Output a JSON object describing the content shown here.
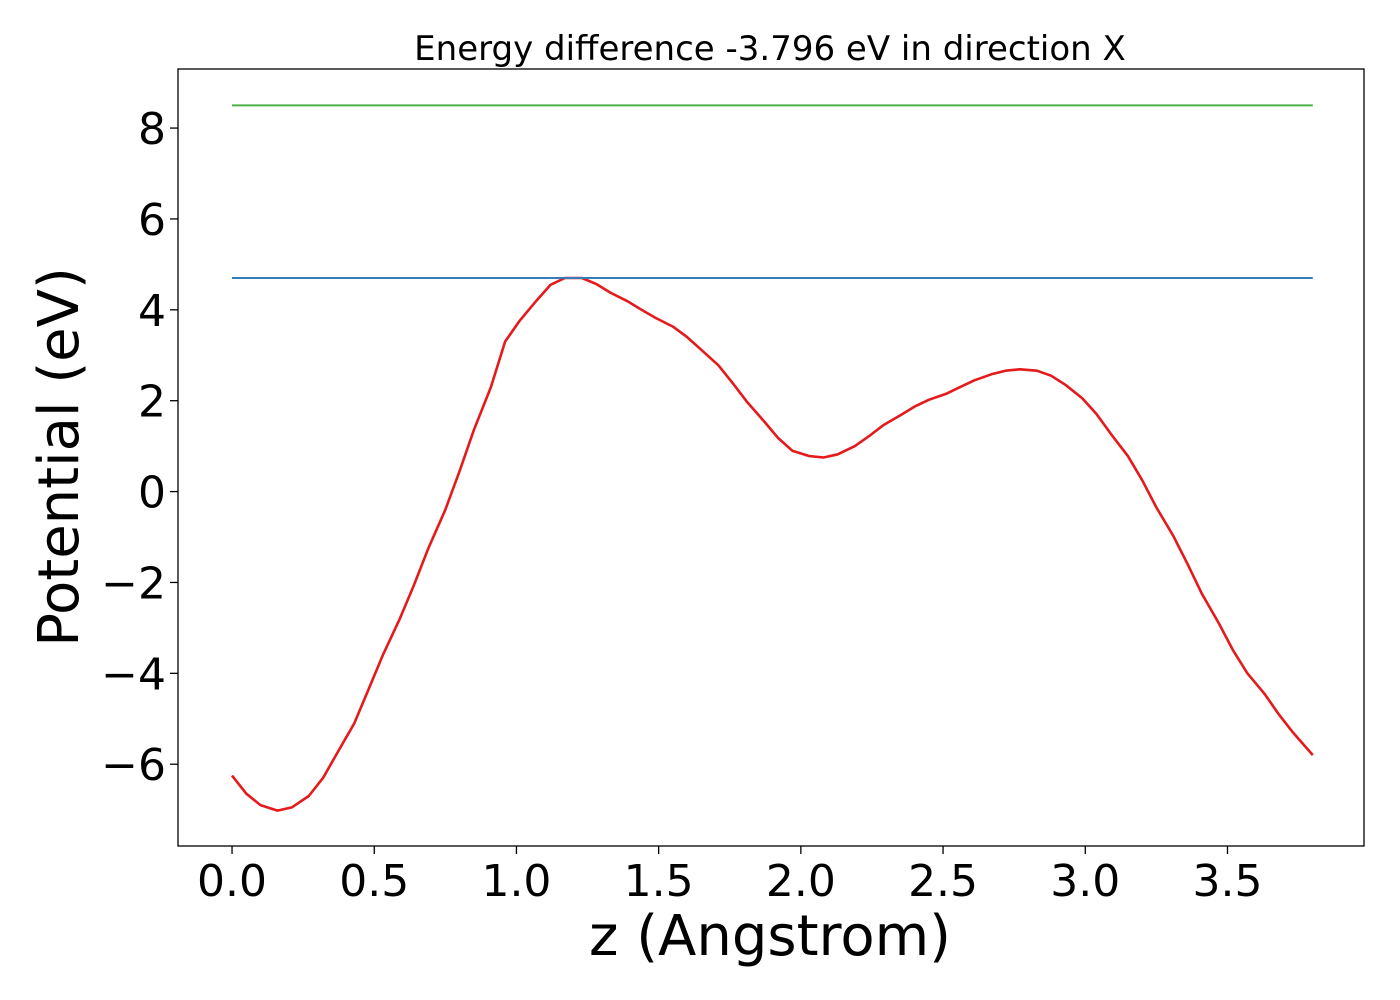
{
  "chart_data": {
    "type": "line",
    "title": "Energy difference -3.796 eV in direction X",
    "xlabel": "z (Angstrom)",
    "ylabel": "Potential (eV)",
    "xlim": [
      -0.19,
      3.98
    ],
    "ylim": [
      -7.8,
      9.3
    ],
    "xticks": [
      0.0,
      0.5,
      1.0,
      1.5,
      2.0,
      2.5,
      3.0,
      3.5
    ],
    "xtick_labels": [
      "0.0",
      "0.5",
      "1.0",
      "1.5",
      "2.0",
      "2.5",
      "3.0",
      "3.5"
    ],
    "yticks": [
      -6,
      -4,
      -2,
      0,
      2,
      4,
      6,
      8
    ],
    "ytick_labels": [
      "−6",
      "−4",
      "−2",
      "0",
      "2",
      "4",
      "6",
      "8"
    ],
    "grid": false,
    "series": [
      {
        "name": "potential",
        "color": "#e41a1c",
        "x": [
          0.0,
          0.05,
          0.1,
          0.16,
          0.21,
          0.27,
          0.32,
          0.37,
          0.43,
          0.48,
          0.53,
          0.59,
          0.64,
          0.69,
          0.75,
          0.8,
          0.85,
          0.91,
          0.96,
          1.01,
          1.07,
          1.12,
          1.17,
          1.23,
          1.28,
          1.33,
          1.39,
          1.44,
          1.49,
          1.55,
          1.6,
          1.65,
          1.71,
          1.76,
          1.81,
          1.87,
          1.92,
          1.97,
          2.03,
          2.08,
          2.13,
          2.19,
          2.24,
          2.29,
          2.35,
          2.4,
          2.45,
          2.51,
          2.56,
          2.61,
          2.67,
          2.72,
          2.77,
          2.83,
          2.88,
          2.93,
          2.99,
          3.04,
          3.09,
          3.15,
          3.2,
          3.25,
          3.31,
          3.36,
          3.41,
          3.47,
          3.52,
          3.57,
          3.63,
          3.68,
          3.73,
          3.8
        ],
        "y": [
          -6.25,
          -6.65,
          -6.9,
          -7.02,
          -6.95,
          -6.7,
          -6.3,
          -5.75,
          -5.1,
          -4.35,
          -3.6,
          -2.8,
          -2.05,
          -1.25,
          -0.4,
          0.45,
          1.35,
          2.3,
          3.3,
          3.75,
          4.2,
          4.55,
          4.7,
          4.7,
          4.57,
          4.38,
          4.19,
          4.0,
          3.82,
          3.63,
          3.4,
          3.12,
          2.78,
          2.39,
          1.98,
          1.55,
          1.18,
          0.9,
          0.78,
          0.75,
          0.82,
          1.0,
          1.22,
          1.46,
          1.68,
          1.87,
          2.02,
          2.15,
          2.3,
          2.45,
          2.58,
          2.66,
          2.69,
          2.66,
          2.55,
          2.35,
          2.05,
          1.7,
          1.27,
          0.78,
          0.25,
          -0.35,
          -0.98,
          -1.6,
          -2.25,
          -2.9,
          -3.5,
          -4.0,
          -4.45,
          -4.9,
          -5.3,
          -5.8
        ]
      },
      {
        "name": "reference-blue",
        "color": "#377eb8",
        "x": [
          0.0,
          3.8
        ],
        "y": [
          4.7,
          4.7
        ]
      },
      {
        "name": "reference-green",
        "color": "#4daf4a",
        "x": [
          0.0,
          3.8
        ],
        "y": [
          8.5,
          8.5
        ]
      }
    ]
  }
}
